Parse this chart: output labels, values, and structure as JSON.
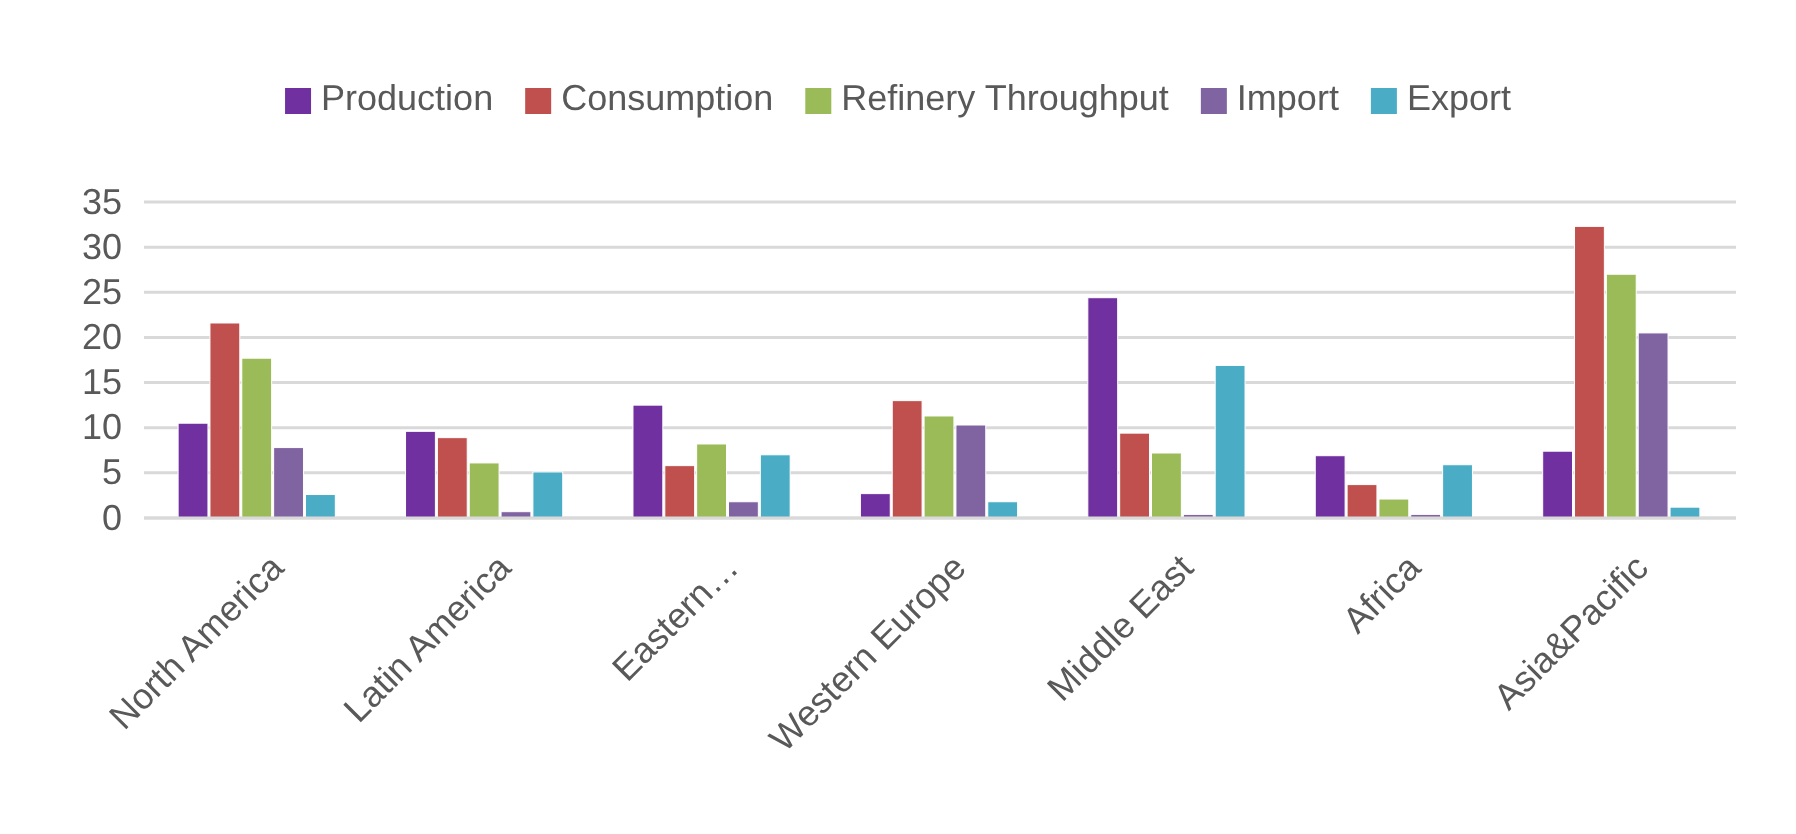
{
  "chart_data": {
    "type": "bar",
    "categories": [
      "North America",
      "Latin America",
      "Eastern…",
      "Western Europe",
      "Middle East",
      "Africa",
      "Asia&Pacific"
    ],
    "series": [
      {
        "name": "Production",
        "color": "#7030a0",
        "values": [
          10.5,
          9.6,
          12.5,
          2.7,
          24.4,
          6.9,
          7.4
        ]
      },
      {
        "name": "Consumption",
        "color": "#c0504d",
        "values": [
          21.6,
          8.9,
          5.8,
          13.0,
          9.4,
          3.7,
          32.3
        ]
      },
      {
        "name": "Refinery Throughput",
        "color": "#9bbb59",
        "values": [
          17.7,
          6.1,
          8.2,
          11.3,
          7.2,
          2.1,
          27.0
        ]
      },
      {
        "name": "Import",
        "color": "#8064a2",
        "values": [
          7.8,
          0.7,
          1.8,
          10.3,
          0.4,
          0.4,
          20.5
        ]
      },
      {
        "name": "Export",
        "color": "#4bacc6",
        "values": [
          2.6,
          5.1,
          7.0,
          1.8,
          16.9,
          5.9,
          1.2
        ]
      }
    ],
    "ylim": [
      0,
      35
    ],
    "yticks": [
      0,
      5,
      10,
      15,
      20,
      25,
      30,
      35
    ],
    "grid": "y",
    "legend": "top"
  }
}
